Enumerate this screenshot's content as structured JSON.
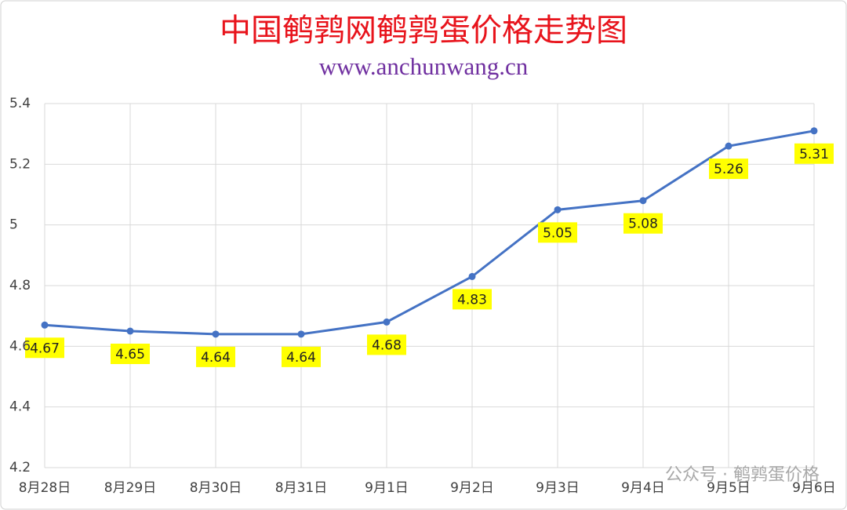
{
  "chart_data": {
    "type": "line",
    "title": "中国鹌鹑网鹌鹑蛋价格走势图",
    "subtitle": "www.anchunwang.cn",
    "watermark": "公众号 · 鹌鹑蛋价格",
    "categories": [
      "8月28日",
      "8月29日",
      "8月30日",
      "8月31日",
      "9月1日",
      "9月2日",
      "9月3日",
      "9月4日",
      "9月5日",
      "9月6日"
    ],
    "series": [
      {
        "name": "鹌鹑蛋价格",
        "color": "#4472c4",
        "values": [
          4.67,
          4.65,
          4.64,
          4.64,
          4.68,
          4.83,
          5.05,
          5.08,
          5.26,
          5.31
        ]
      }
    ],
    "ylim": [
      4.2,
      5.4
    ],
    "yticks": [
      4.2,
      4.4,
      4.6,
      4.8,
      5,
      5.2,
      5.4
    ],
    "grid": true,
    "label_color": "#ffff00"
  }
}
